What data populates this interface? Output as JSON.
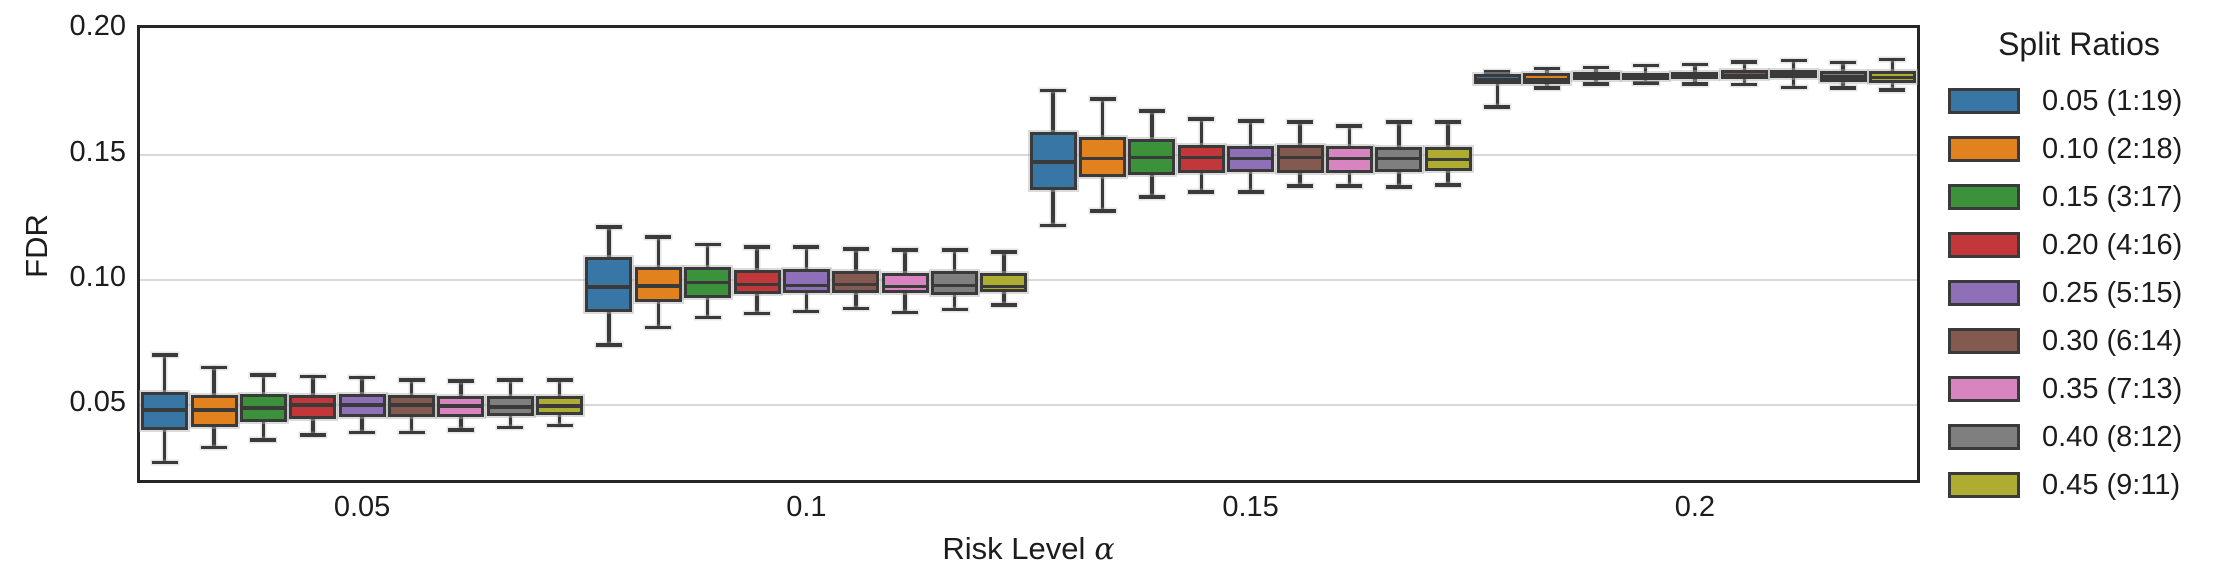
{
  "figure": {
    "y_axis": {
      "label": "FDR"
    },
    "x_axis": {
      "label_prefix": "Risk Level",
      "label_symbol": "α"
    },
    "legend": {
      "title": "Split Ratios"
    }
  },
  "chart_data": {
    "type": "boxplot",
    "title": "",
    "xlabel": "Risk Level α",
    "ylabel": "FDR",
    "categories": [
      "0.05",
      "0.1",
      "0.15",
      "0.2"
    ],
    "ylim": [
      0.02,
      0.2005
    ],
    "grid": "horizontal",
    "legend_position": "right",
    "legend_title": "Split Ratios",
    "yticks": [
      {
        "label": "0.20",
        "value": 0.2
      },
      {
        "label": "0.15",
        "value": 0.15
      },
      {
        "label": "0.10",
        "value": 0.1
      },
      {
        "label": "0.05",
        "value": 0.05
      }
    ],
    "gridline_values": [
      0.05,
      0.1,
      0.15
    ],
    "series": [
      {
        "name": "0.05 (1:19)",
        "color": "#3876a5",
        "boxes": [
          {
            "whislo": 0.027,
            "q1": 0.04,
            "med": 0.048,
            "q3": 0.055,
            "whishi": 0.07
          },
          {
            "whislo": 0.074,
            "q1": 0.087,
            "med": 0.097,
            "q3": 0.109,
            "whishi": 0.121
          },
          {
            "whislo": 0.1216,
            "q1": 0.1358,
            "med": 0.147,
            "q3": 0.1591,
            "whishi": 0.1756
          },
          {
            "whislo": 0.169,
            "q1": 0.1782,
            "med": 0.18,
            "q3": 0.182,
            "whishi": 0.1829
          }
        ]
      },
      {
        "name": "0.10 (2:18)",
        "color": "#e2821f",
        "boxes": [
          {
            "whislo": 0.033,
            "q1": 0.041,
            "med": 0.048,
            "q3": 0.054,
            "whishi": 0.065
          },
          {
            "whislo": 0.081,
            "q1": 0.091,
            "med": 0.0975,
            "q3": 0.105,
            "whishi": 0.117
          },
          {
            "whislo": 0.1275,
            "q1": 0.1409,
            "med": 0.1484,
            "q3": 0.1571,
            "whishi": 0.1721
          },
          {
            "whislo": 0.1765,
            "q1": 0.178,
            "med": 0.18,
            "q3": 0.1824,
            "whishi": 0.1843
          }
        ]
      },
      {
        "name": "0.15 (3:17)",
        "color": "#3b923b",
        "boxes": [
          {
            "whislo": 0.036,
            "q1": 0.043,
            "med": 0.0488,
            "q3": 0.0543,
            "whishi": 0.062
          },
          {
            "whislo": 0.085,
            "q1": 0.0925,
            "med": 0.0988,
            "q3": 0.105,
            "whishi": 0.114
          },
          {
            "whislo": 0.1331,
            "q1": 0.1417,
            "med": 0.1488,
            "q3": 0.1563,
            "whishi": 0.1673
          },
          {
            "whislo": 0.1781,
            "q1": 0.1796,
            "med": 0.181,
            "q3": 0.1829,
            "whishi": 0.1847
          }
        ]
      },
      {
        "name": "0.20 (4:16)",
        "color": "#c23739",
        "boxes": [
          {
            "whislo": 0.038,
            "q1": 0.0445,
            "med": 0.05,
            "q3": 0.054,
            "whishi": 0.0614
          },
          {
            "whislo": 0.0866,
            "q1": 0.0941,
            "med": 0.098,
            "q3": 0.1039,
            "whishi": 0.113
          },
          {
            "whislo": 0.135,
            "q1": 0.1425,
            "med": 0.1488,
            "q3": 0.1539,
            "whishi": 0.1642
          },
          {
            "whislo": 0.1785,
            "q1": 0.18,
            "med": 0.1812,
            "q3": 0.1825,
            "whishi": 0.1855
          }
        ]
      },
      {
        "name": "0.25 (5:15)",
        "color": "#8e70b8",
        "boxes": [
          {
            "whislo": 0.039,
            "q1": 0.0453,
            "med": 0.05,
            "q3": 0.0543,
            "whishi": 0.061
          },
          {
            "whislo": 0.0874,
            "q1": 0.0945,
            "med": 0.0976,
            "q3": 0.1043,
            "whishi": 0.113
          },
          {
            "whislo": 0.135,
            "q1": 0.1429,
            "med": 0.1484,
            "q3": 0.1535,
            "whishi": 0.1634
          },
          {
            "whislo": 0.1781,
            "q1": 0.1804,
            "med": 0.1815,
            "q3": 0.1829,
            "whishi": 0.1859
          }
        ]
      },
      {
        "name": "0.30 (6:14)",
        "color": "#84594f",
        "boxes": [
          {
            "whislo": 0.039,
            "q1": 0.045,
            "med": 0.05,
            "q3": 0.054,
            "whishi": 0.06
          },
          {
            "whislo": 0.0886,
            "q1": 0.0945,
            "med": 0.098,
            "q3": 0.1035,
            "whishi": 0.1122
          },
          {
            "whislo": 0.1374,
            "q1": 0.1425,
            "med": 0.1488,
            "q3": 0.1539,
            "whishi": 0.163
          },
          {
            "whislo": 0.178,
            "q1": 0.18,
            "med": 0.1815,
            "q3": 0.1839,
            "whishi": 0.187
          }
        ]
      },
      {
        "name": "0.35 (7:13)",
        "color": "#d884c0",
        "boxes": [
          {
            "whislo": 0.04,
            "q1": 0.0453,
            "med": 0.0496,
            "q3": 0.0535,
            "whishi": 0.0595
          },
          {
            "whislo": 0.087,
            "q1": 0.0945,
            "med": 0.0972,
            "q3": 0.1028,
            "whishi": 0.1118
          },
          {
            "whislo": 0.1374,
            "q1": 0.1425,
            "med": 0.1484,
            "q3": 0.1535,
            "whishi": 0.1614
          },
          {
            "whislo": 0.1768,
            "q1": 0.1804,
            "med": 0.1818,
            "q3": 0.1839,
            "whishi": 0.1875
          }
        ]
      },
      {
        "name": "0.40 (8:12)",
        "color": "#7f7f7f",
        "boxes": [
          {
            "whislo": 0.041,
            "q1": 0.0457,
            "med": 0.0492,
            "q3": 0.0535,
            "whishi": 0.06
          },
          {
            "whislo": 0.0882,
            "q1": 0.0937,
            "med": 0.0976,
            "q3": 0.1035,
            "whishi": 0.1118
          },
          {
            "whislo": 0.137,
            "q1": 0.1429,
            "med": 0.1484,
            "q3": 0.1531,
            "whishi": 0.163
          },
          {
            "whislo": 0.1766,
            "q1": 0.1789,
            "med": 0.181,
            "q3": 0.1832,
            "whishi": 0.1868
          }
        ]
      },
      {
        "name": "0.45 (9:11)",
        "color": "#aeac31",
        "boxes": [
          {
            "whislo": 0.0417,
            "q1": 0.046,
            "med": 0.0496,
            "q3": 0.0535,
            "whishi": 0.06
          },
          {
            "whislo": 0.09,
            "q1": 0.095,
            "med": 0.0972,
            "q3": 0.1028,
            "whishi": 0.111
          },
          {
            "whislo": 0.1378,
            "q1": 0.1433,
            "med": 0.148,
            "q3": 0.1528,
            "whishi": 0.163
          },
          {
            "whislo": 0.1757,
            "q1": 0.1784,
            "med": 0.1808,
            "q3": 0.1835,
            "whishi": 0.1879
          }
        ]
      }
    ]
  }
}
